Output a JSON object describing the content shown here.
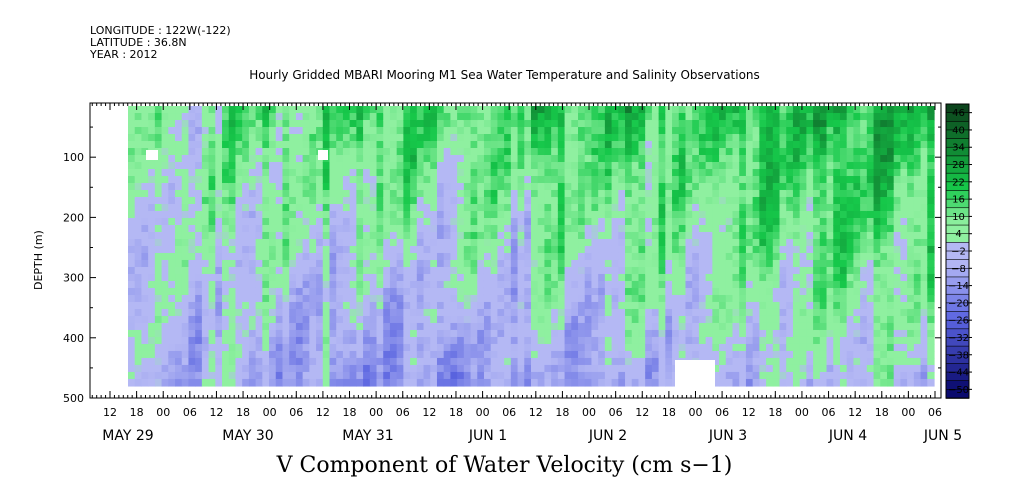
{
  "header": {
    "longitude": "LONGITUDE : 122W(-122)",
    "latitude": "LATITUDE : 36.8N",
    "year": "YEAR : 2012"
  },
  "chart_data": {
    "type": "heatmap",
    "title": "Hourly Gridded MBARI Mooring M1 Sea Water Temperature and Salinity Observations",
    "xlabel": "V Component of Water Velocity (cm s−1)",
    "ylabel": "DEPTH (m)",
    "y_ticks": [
      100,
      200,
      300,
      400,
      500
    ],
    "ylim": [
      500,
      10
    ],
    "x_hour_ticks": [
      "12",
      "18",
      "00",
      "06",
      "12",
      "18",
      "00",
      "06",
      "12",
      "18",
      "00",
      "06",
      "12",
      "18",
      "00",
      "06",
      "12",
      "18",
      "00",
      "06",
      "12",
      "18",
      "00",
      "06",
      "12",
      "18",
      "00",
      "06",
      "12",
      "18",
      "00",
      "06"
    ],
    "x_day_labels": [
      "MAY 29",
      "MAY 30",
      "MAY 31",
      "JUN  1",
      "JUN  2",
      "JUN  3",
      "JUN  4",
      "JUN  5"
    ],
    "colorbar_labels": [
      "46",
      "40",
      "34",
      "28",
      "22",
      "16",
      "10",
      "4",
      "−2",
      "−8",
      "−14",
      "−20",
      "−26",
      "−32",
      "−38",
      "−44",
      "−50"
    ],
    "colorbar_levels": [
      49,
      46,
      43,
      40,
      37,
      34,
      31,
      28,
      25,
      22,
      19,
      16,
      13,
      10,
      7,
      4,
      1,
      -2,
      -5,
      -8,
      -11,
      -14,
      -17,
      -20,
      -23,
      -26,
      -29,
      -32,
      -35,
      -38,
      -41,
      -44,
      -47,
      -50,
      -53
    ],
    "colors": {
      "strong_pos": "#0b3d1a",
      "mid_pos": "#16c84a",
      "light_pos": "#8ff0a0",
      "light_neg": "#b4b8f4",
      "mid_neg": "#5a64e0",
      "strong_neg": "#0a0a6e"
    },
    "day_columns": [
      {
        "day": "MAY 29",
        "upper": 6,
        "lower": -6
      },
      {
        "day": "MAY 30",
        "upper": 14,
        "lower": -8
      },
      {
        "day": "MAY 31",
        "upper": 16,
        "lower": -16
      },
      {
        "day": "JUN  1",
        "upper": 14,
        "lower": -14
      },
      {
        "day": "JUN  2",
        "upper": 20,
        "lower": -10
      },
      {
        "day": "JUN  3",
        "upper": 18,
        "lower": -6
      },
      {
        "day": "JUN  4",
        "upper": 22,
        "lower": -4
      },
      {
        "day": "JUN  5",
        "upper": 24,
        "lower": -2
      }
    ]
  }
}
